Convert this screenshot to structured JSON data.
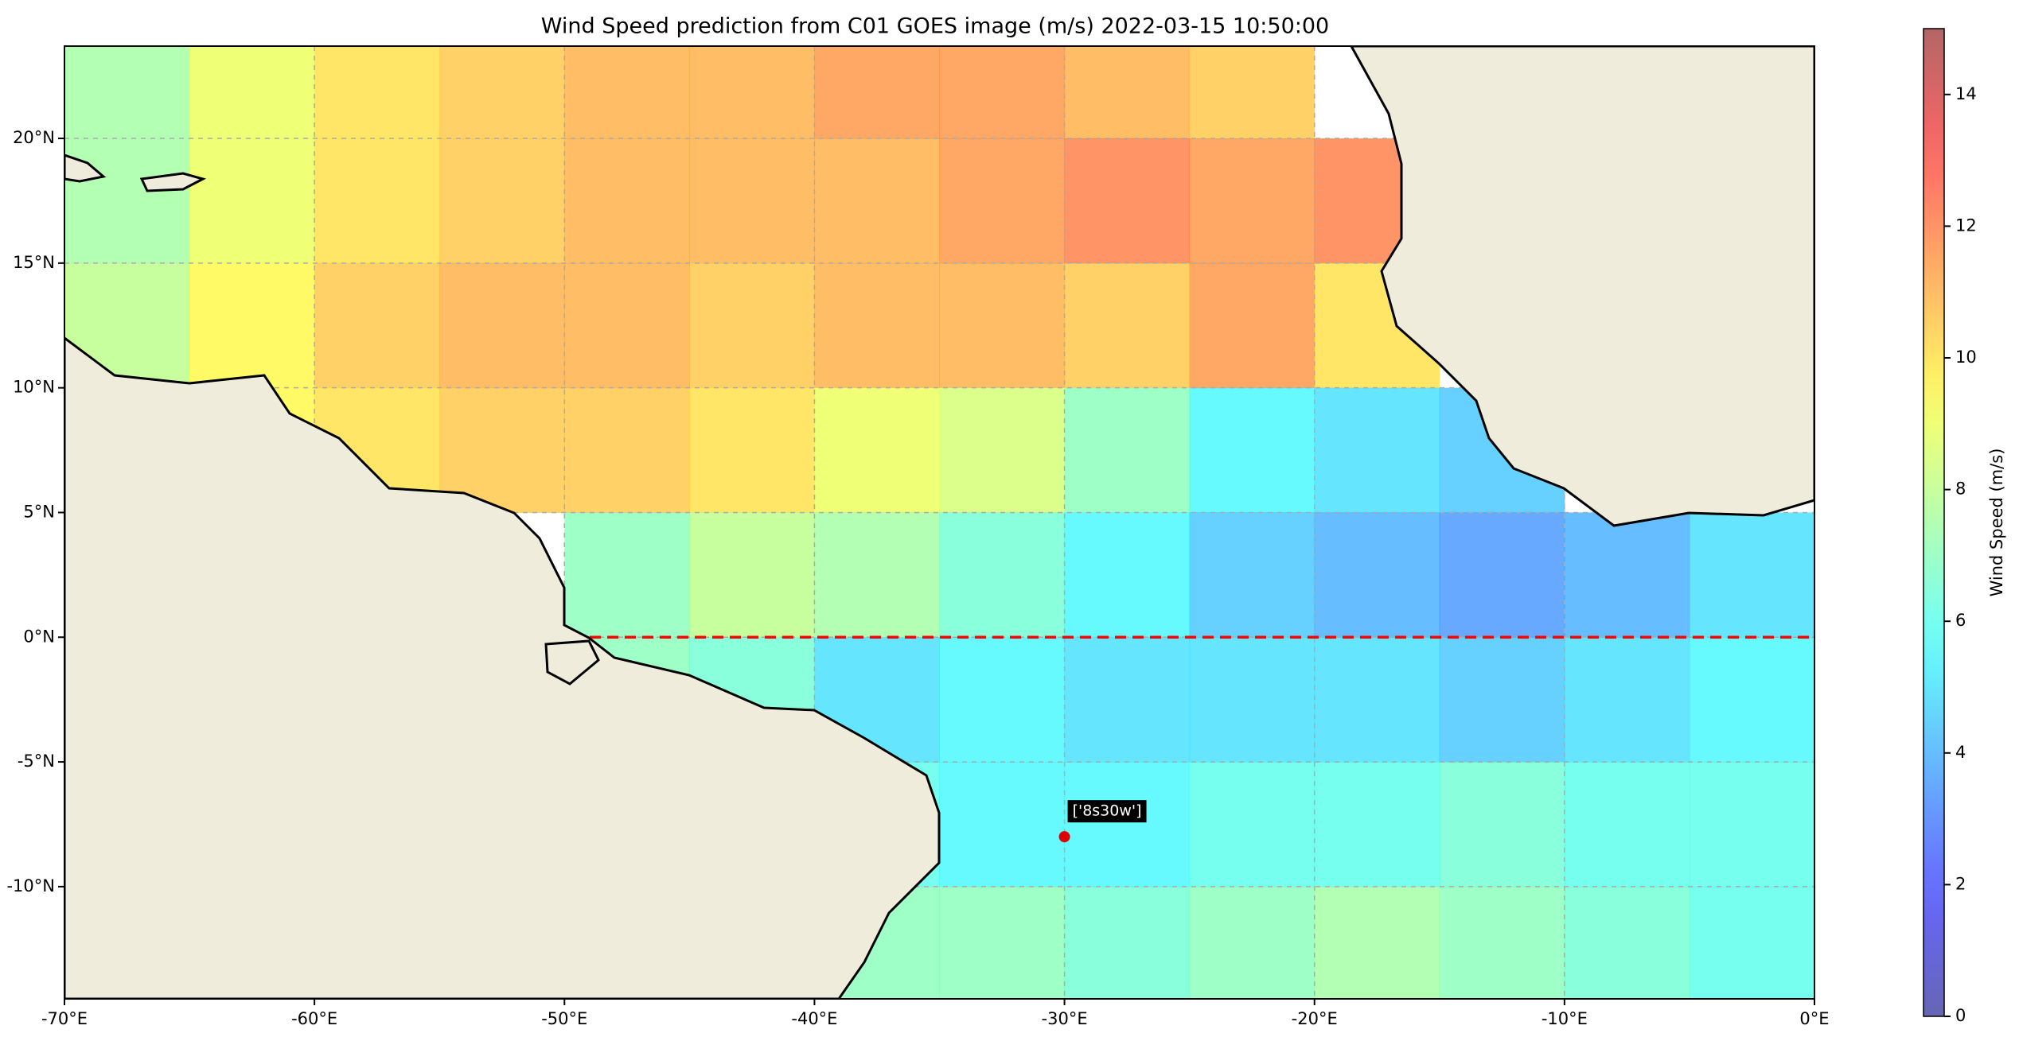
{
  "chart_data": {
    "type": "heatmap",
    "title": "Wind Speed prediction from C01 GOES image (m/s) 2022-03-15 10:50:00",
    "xlim": [
      -70,
      0
    ],
    "ylim": [
      -14.5,
      23.7
    ],
    "xticks": [
      {
        "value": -70,
        "label": "-70°E"
      },
      {
        "value": -60,
        "label": "-60°E"
      },
      {
        "value": -50,
        "label": "-50°E"
      },
      {
        "value": -40,
        "label": "-40°E"
      },
      {
        "value": -30,
        "label": "-30°E"
      },
      {
        "value": -20,
        "label": "-20°E"
      },
      {
        "value": -10,
        "label": "-10°E"
      },
      {
        "value": 0,
        "label": "0°E"
      }
    ],
    "yticks": [
      {
        "value": -10,
        "label": "-10°N"
      },
      {
        "value": -5,
        "label": "-5°N"
      },
      {
        "value": 0,
        "label": "0°N"
      },
      {
        "value": 5,
        "label": "5°N"
      },
      {
        "value": 10,
        "label": "10°N"
      },
      {
        "value": 15,
        "label": "15°N"
      },
      {
        "value": 20,
        "label": "20°N"
      }
    ],
    "grid": true,
    "grid_cells": {
      "x": [
        -67.5,
        -62.5,
        -57.5,
        -52.5,
        -47.5,
        -42.5,
        -37.5,
        -32.5,
        -27.5,
        -22.5,
        -17.5,
        -12.5,
        -7.5,
        -2.5
      ],
      "y": [
        22.5,
        17.5,
        12.5,
        7.5,
        2.5,
        -2.5,
        -7.5,
        -12.5
      ],
      "values": [
        [
          7.5,
          9,
          10,
          10.5,
          11,
          11,
          11.5,
          11.5,
          11,
          10.5,
          null,
          null,
          null,
          null
        ],
        [
          7.5,
          9,
          10,
          10.5,
          11,
          11,
          11,
          11.5,
          12,
          11.5,
          12,
          null,
          null,
          null
        ],
        [
          8,
          9.5,
          10.5,
          11,
          11,
          10.5,
          11,
          11,
          10.5,
          11.5,
          10,
          null,
          null,
          null
        ],
        [
          null,
          9.5,
          10,
          10.5,
          10.5,
          10,
          9,
          8.5,
          7,
          5.5,
          5,
          4.5,
          null,
          null
        ],
        [
          null,
          null,
          null,
          null,
          7,
          8,
          7.5,
          6.5,
          5.5,
          4.5,
          4,
          3.5,
          4,
          5
        ],
        [
          null,
          null,
          null,
          null,
          7,
          6.5,
          5,
          5.5,
          5,
          5,
          5,
          4.5,
          5,
          5.5
        ],
        [
          null,
          null,
          null,
          null,
          null,
          null,
          6,
          5.5,
          5.5,
          6,
          6,
          6.5,
          6,
          6
        ],
        [
          null,
          null,
          null,
          null,
          null,
          null,
          7,
          7,
          6.5,
          7,
          7.5,
          7,
          6.5,
          6
        ]
      ]
    },
    "hline": {
      "y": 0,
      "color": "#ff0000"
    },
    "annotation": {
      "text": "['8s30w']",
      "x": -30,
      "y": -8,
      "color": "#e00000"
    },
    "colorbar": {
      "label": "Wind Speed (m/s)",
      "lim": [
        0,
        15
      ],
      "ticks": [
        0,
        2,
        4,
        6,
        8,
        10,
        12,
        14
      ],
      "colormap": "jet",
      "alpha": 0.6
    }
  }
}
